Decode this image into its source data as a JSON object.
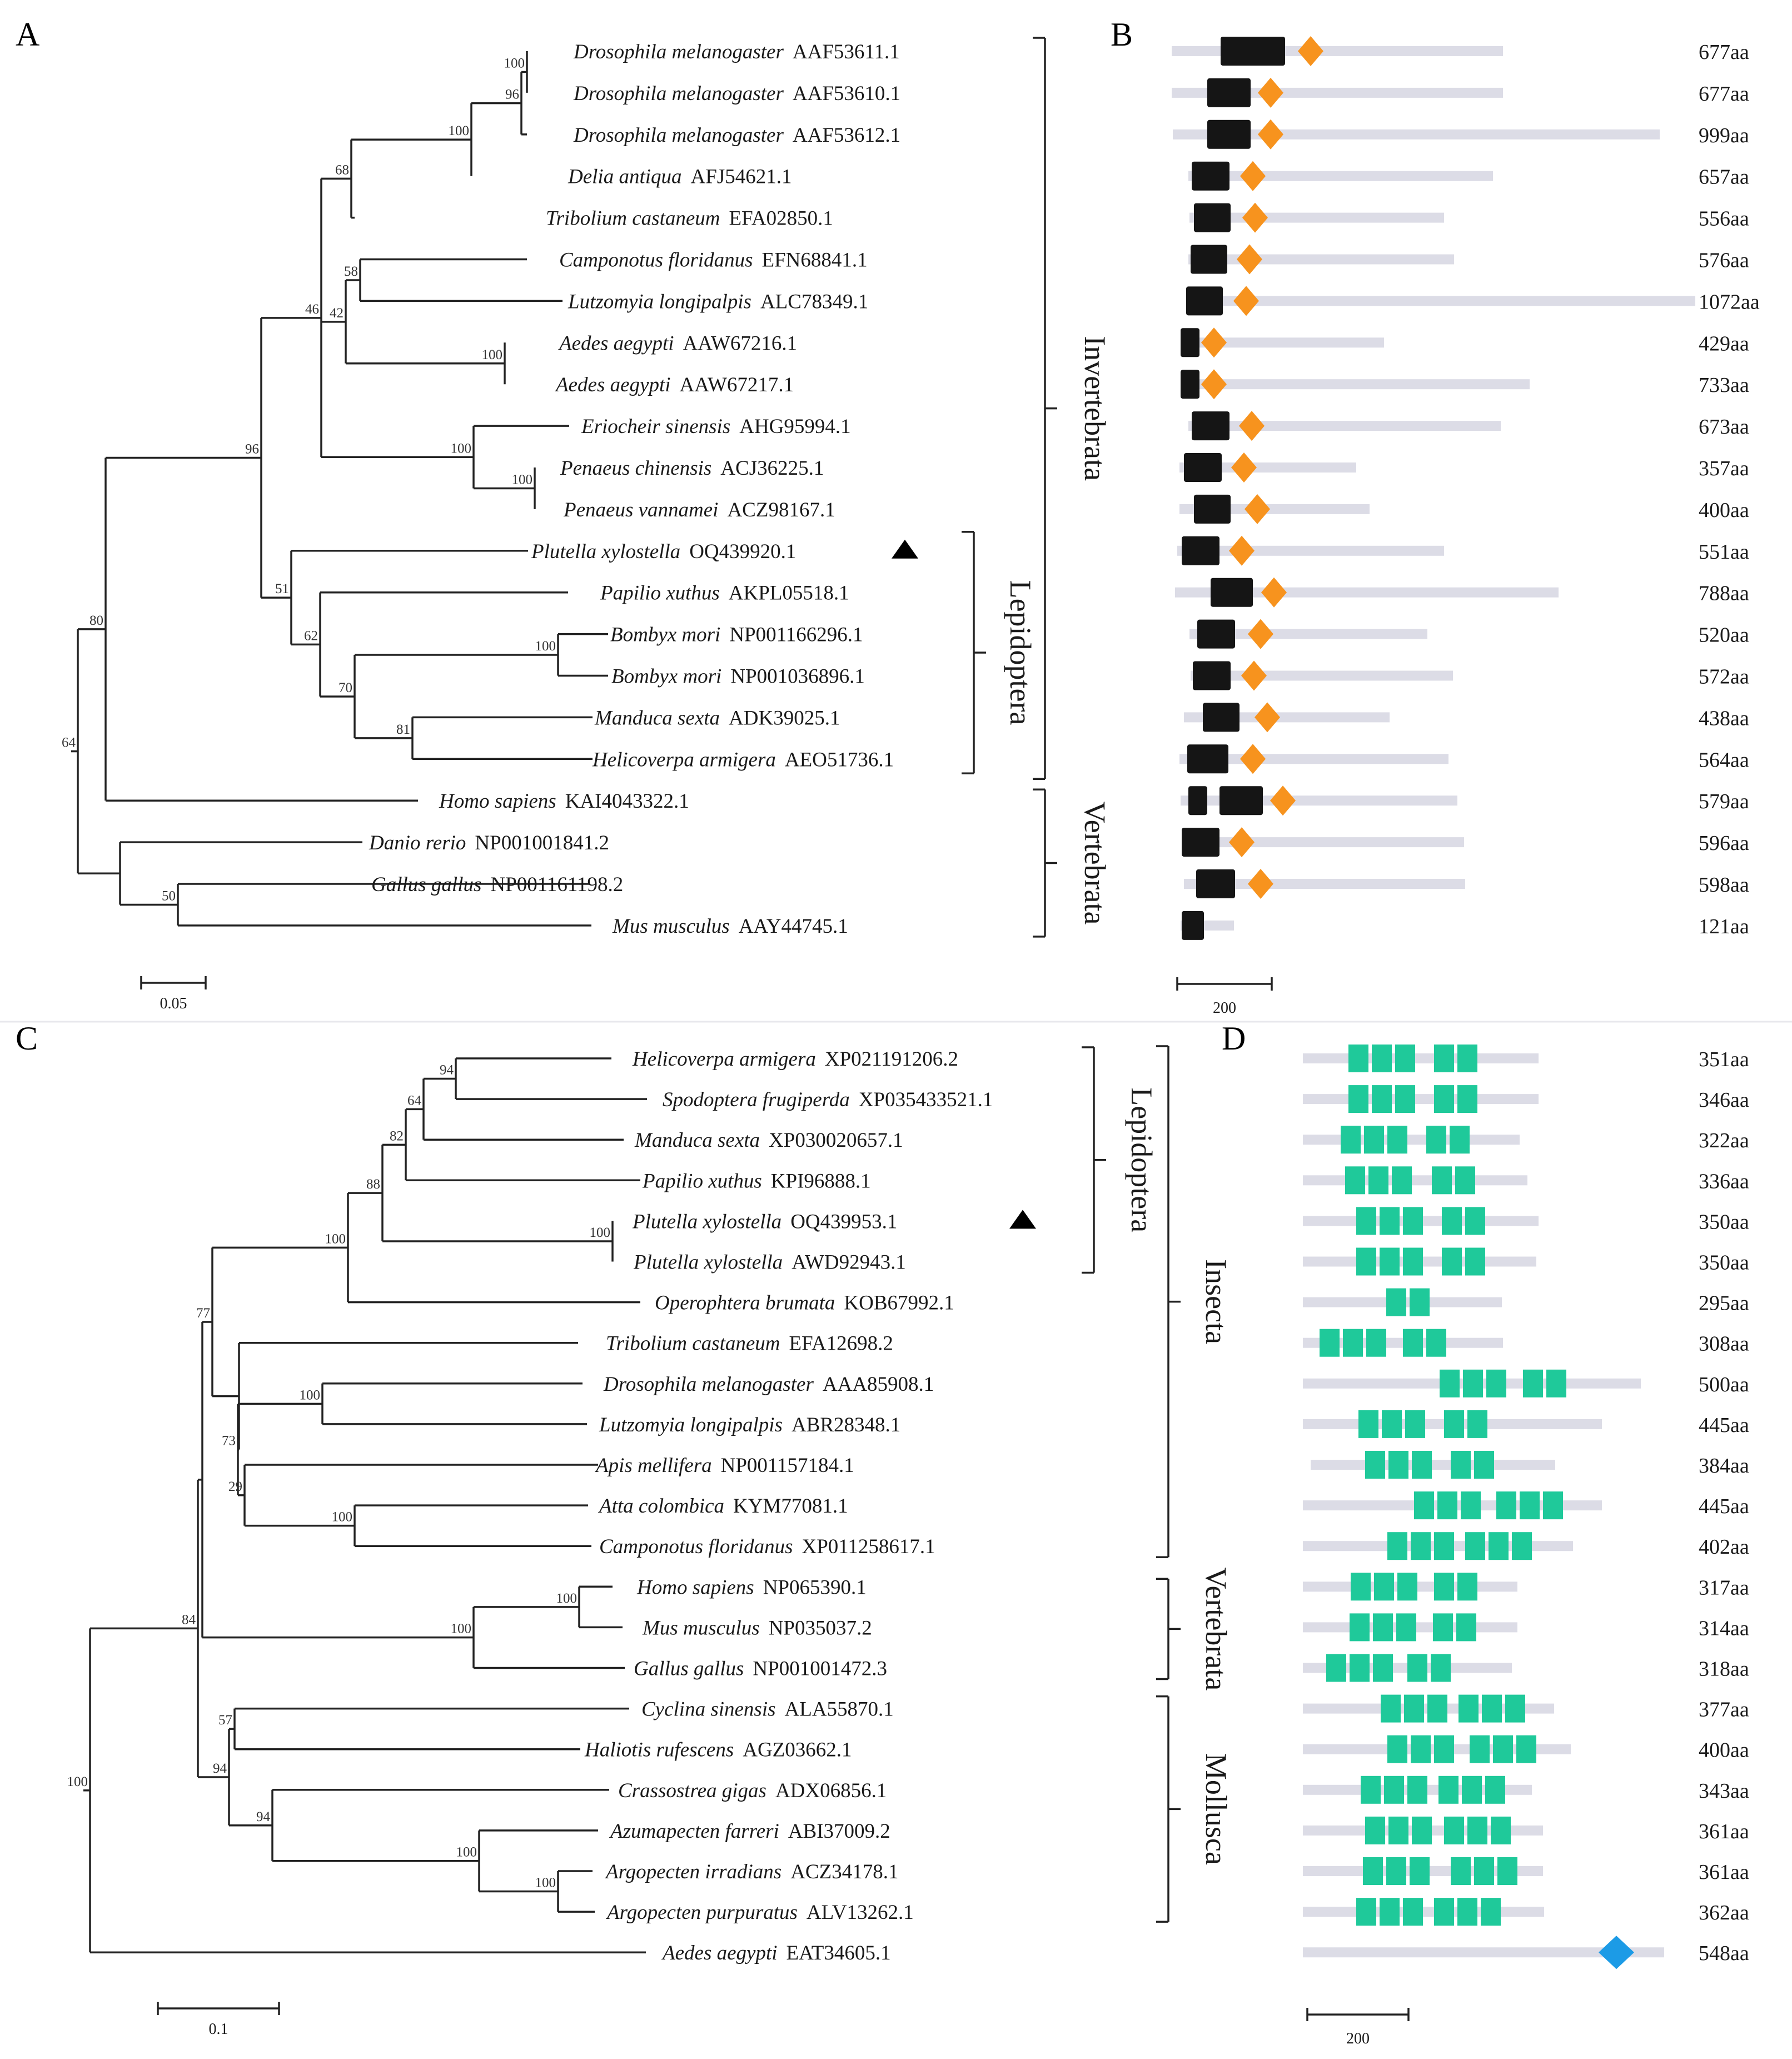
{
  "panels": {
    "A": "A",
    "B": "B",
    "C": "C",
    "D": "D"
  },
  "colors": {
    "line": "#222222",
    "bar": "#dcdce6",
    "black_domain": "#151515",
    "orange_motif": "#f7931e",
    "green_domain": "#1fc99a",
    "blue_motif": "#1c9be6"
  },
  "treeA": {
    "taxa": [
      {
        "species": "Drosophila melanogaster",
        "acc": "AAF53611.1"
      },
      {
        "species": "Drosophila melanogaster",
        "acc": "AAF53610.1"
      },
      {
        "species": "Drosophila melanogaster",
        "acc": "AAF53612.1"
      },
      {
        "species": "Delia antiqua",
        "acc": "AFJ54621.1"
      },
      {
        "species": "Tribolium castaneum",
        "acc": "EFA02850.1"
      },
      {
        "species": "Camponotus floridanus",
        "acc": "EFN68841.1"
      },
      {
        "species": "Lutzomyia longipalpis",
        "acc": "ALC78349.1"
      },
      {
        "species": "Aedes aegypti",
        "acc": "AAW67216.1"
      },
      {
        "species": "Aedes aegypti",
        "acc": "AAW67217.1"
      },
      {
        "species": "Eriocheir sinensis",
        "acc": "AHG95994.1"
      },
      {
        "species": "Penaeus chinensis",
        "acc": "ACJ36225.1"
      },
      {
        "species": "Penaeus vannamei",
        "acc": "ACZ98167.1"
      },
      {
        "species": "Plutella xylostella",
        "acc": "OQ439920.1"
      },
      {
        "species": "Papilio xuthus",
        "acc": "AKPL05518.1"
      },
      {
        "species": "Bombyx mori",
        "acc": "NP001166296.1"
      },
      {
        "species": "Bombyx mori",
        "acc": "NP001036896.1"
      },
      {
        "species": "Manduca sexta",
        "acc": "ADK39025.1"
      },
      {
        "species": "Helicoverpa armigera",
        "acc": "AEO51736.1"
      },
      {
        "species": "Homo sapiens",
        "acc": "KAI4043322.1"
      },
      {
        "species": "Danio rerio",
        "acc": "NP001001841.2"
      },
      {
        "species": "Gallus gallus",
        "acc": "NP001161198.2"
      },
      {
        "species": "Mus musculus",
        "acc": "AAY44745.1"
      }
    ],
    "bootstrap": [
      "100",
      "96",
      "100",
      "68",
      "46",
      "58",
      "42",
      "96",
      "100",
      "80",
      "100",
      "100",
      "51",
      "62",
      "100",
      "70",
      "81",
      "64",
      "50"
    ],
    "clades": [
      "Invertebrata",
      "Lepidoptera",
      "Vertebrata"
    ],
    "scale_label": "0.05"
  },
  "domainsB": {
    "lengths": [
      "677aa",
      "677aa",
      "999aa",
      "657aa",
      "556aa",
      "576aa",
      "1072aa",
      "429aa",
      "733aa",
      "673aa",
      "357aa",
      "400aa",
      "551aa",
      "788aa",
      "520aa",
      "572aa",
      "438aa",
      "564aa",
      "579aa",
      "596aa",
      "598aa",
      "121aa"
    ],
    "scale_label": "200"
  },
  "treeC": {
    "taxa": [
      {
        "species": "Helicoverpa armigera",
        "acc": "XP021191206.2"
      },
      {
        "species": "Spodoptera frugiperda",
        "acc": "XP035433521.1"
      },
      {
        "species": "Manduca sexta",
        "acc": "XP030020657.1"
      },
      {
        "species": "Papilio xuthus",
        "acc": "KPI96888.1"
      },
      {
        "species": "Plutella xylostella",
        "acc": "OQ439953.1"
      },
      {
        "species": "Plutella xylostella",
        "acc": "AWD92943.1"
      },
      {
        "species": "Operophtera brumata",
        "acc": "KOB67992.1"
      },
      {
        "species": "Tribolium castaneum",
        "acc": "EFA12698.2"
      },
      {
        "species": "Drosophila melanogaster",
        "acc": "AAA85908.1"
      },
      {
        "species": "Lutzomyia longipalpis",
        "acc": "ABR28348.1"
      },
      {
        "species": "Apis mellifera",
        "acc": "NP001157184.1"
      },
      {
        "species": "Atta colombica",
        "acc": "KYM77081.1"
      },
      {
        "species": "Camponotus floridanus",
        "acc": "XP011258617.1"
      },
      {
        "species": "Homo sapiens",
        "acc": "NP065390.1"
      },
      {
        "species": "Mus musculus",
        "acc": "NP035037.2"
      },
      {
        "species": "Gallus gallus",
        "acc": "NP001001472.3"
      },
      {
        "species": "Cyclina sinensis",
        "acc": "ALA55870.1"
      },
      {
        "species": "Haliotis rufescens",
        "acc": "AGZ03662.1"
      },
      {
        "species": "Crassostrea gigas",
        "acc": "ADX06856.1"
      },
      {
        "species": "Azumapecten farreri",
        "acc": "ABI37009.2"
      },
      {
        "species": "Argopecten irradians",
        "acc": "ACZ34178.1"
      },
      {
        "species": "Argopecten purpuratus",
        "acc": "ALV13262.1"
      },
      {
        "species": "Aedes aegypti",
        "acc": "EAT34605.1"
      }
    ],
    "bootstrap": [
      "94",
      "64",
      "82",
      "88",
      "100",
      "100",
      "77",
      "100",
      "73",
      "29",
      "100",
      "100",
      "100",
      "100",
      "57",
      "84",
      "94",
      "94",
      "100",
      "100"
    ],
    "clades": [
      "Lepidoptera",
      "Insecta",
      "Vertebrata",
      "Mollusca"
    ],
    "scale_label": "0.1"
  },
  "domainsD": {
    "lengths": [
      "351aa",
      "346aa",
      "322aa",
      "336aa",
      "350aa",
      "350aa",
      "295aa",
      "308aa",
      "500aa",
      "445aa",
      "384aa",
      "445aa",
      "402aa",
      "317aa",
      "314aa",
      "318aa",
      "377aa",
      "400aa",
      "343aa",
      "361aa",
      "361aa",
      "362aa",
      "548aa"
    ],
    "scale_label": "200"
  }
}
